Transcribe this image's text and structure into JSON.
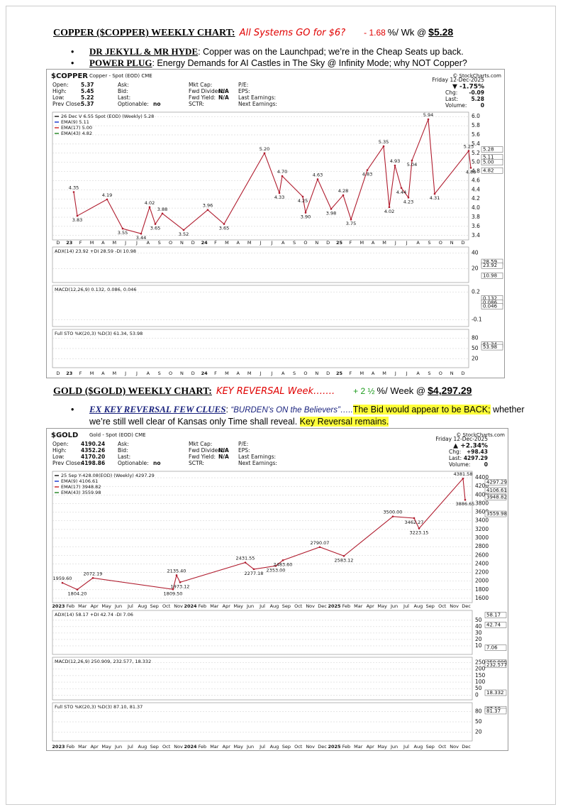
{
  "sections": [
    {
      "heading": {
        "title": "COPPER ($COPPER) WEEKLY CHART:",
        "tagline": "All Systems GO for $6?",
        "change": "- 1.68",
        "direction": "down",
        "unit": "%/ Wk @",
        "price": "$5.28"
      },
      "bullets": [
        [
          {
            "text": "DR JEKYLL & MR HYDE",
            "style": "lead"
          },
          {
            "text": ": Copper was on the Launchpad; we’re in the Cheap Seats up back.",
            "style": "plain"
          }
        ],
        [
          {
            "text": "POWER PLUG",
            "style": "lead"
          },
          {
            "text": ": Energy Demands for AI Castles in The Sky @ Infinity Mode; why NOT Copper?",
            "style": "plain"
          }
        ]
      ],
      "chart": {
        "symbol": "$COPPER",
        "name": "Copper - Spot (EOD) CME",
        "source": "© StockCharts.com",
        "quote": [
          [
            [
              "Open:",
              "5.37"
            ],
            [
              "High:",
              "5.45"
            ],
            [
              "Low:",
              "5.22"
            ],
            [
              "Prev Close:",
              "5.37"
            ]
          ],
          [
            [
              "Ask:"
            ],
            [
              "Bid:"
            ],
            [
              "Last:"
            ],
            [
              "Optionable:",
              "no"
            ]
          ],
          [
            [
              "Mkt Cap:"
            ],
            [
              "Fwd Dividend:",
              "N/A"
            ],
            [
              "Fwd Yield:",
              "N/A"
            ],
            [
              "SCTR:"
            ]
          ],
          [
            [
              "P/E:"
            ],
            [
              "EPS:"
            ],
            [
              "Last Earnings:"
            ],
            [
              "Next Earnings:"
            ]
          ]
        ],
        "date": "Friday 12-Dec-2025",
        "day_change": "▼ -1.75%",
        "direction": "down",
        "summary": [
          [
            "Chg:",
            "-0.09"
          ],
          [
            "Last:",
            "5.28"
          ],
          [
            "Volume:",
            "0"
          ]
        ],
        "price": {
          "legend": [
            {
              "text": "26 Dec V 6.55 Spot (EOD) (Weekly) 5.28",
              "color": "#222222"
            },
            {
              "text": "EMA(9) 5.11",
              "color": "#1f3fd0"
            },
            {
              "text": "EMA(17) 5.00",
              "color": "#d03030"
            },
            {
              "text": "EMA(43) 4.82",
              "color": "#2e8b2e"
            }
          ],
          "ylim": [
            3.35,
            6.05
          ],
          "yticks": [
            3.4,
            3.6,
            3.8,
            {
              "value": 4,
              "label": "4.0"
            },
            4.2,
            4.4,
            4.6,
            4.8,
            {
              "value": 5,
              "label": "5.0"
            },
            5.2,
            5.4,
            5.6,
            5.8,
            {
              "value": 6,
              "label": "6.0"
            }
          ],
          "annotations": {
            "values": [
              4.35,
              3.83,
              4.19,
              3.55,
              3.44,
              4.02,
              3.65,
              3.88,
              3.52,
              3.96,
              3.65,
              5.2,
              4.33,
              4.7,
              4.25,
              3.9,
              4.63,
              3.98,
              4.28,
              3.75,
              4.83,
              5.35,
              4.02,
              4.93,
              4.44,
              4.23,
              5.04,
              5.94,
              4.31,
              5.25,
              4.88
            ],
            "value_labels": [
              "4.35",
              "3.83",
              "4.19",
              "3.55",
              "3.44",
              "4.02",
              "3.65",
              "3.88",
              "3.52",
              "3.96",
              "3.65",
              "5.20",
              "4.33",
              "4.70",
              "4.25",
              "3.90",
              "4.63",
              "3.98",
              "4.28",
              "3.75",
              "4.83",
              "5.35",
              "4.02",
              "4.93",
              "4.44",
              "4.23",
              "5.04",
              "5.94",
              "4.31",
              "5.25",
              "4.88"
            ]
          },
          "right_labels": [
            {
              "value": 5.28,
              "label": "5.28"
            },
            {
              "value": 5.11,
              "label": "5.11"
            },
            {
              "value": 5,
              "label": "5.00"
            },
            {
              "value": 4.82,
              "label": "4.82"
            }
          ]
        },
        "months": [
          "D",
          "23",
          "F",
          "M",
          "A",
          "M",
          "J",
          "J",
          "A",
          "S",
          "O",
          "N",
          "D",
          "24",
          "F",
          "M",
          "A",
          "M",
          "J",
          "J",
          "A",
          "S",
          "O",
          "N",
          "D",
          "25",
          "F",
          "M",
          "A",
          "M",
          "J",
          "J",
          "A",
          "S",
          "O",
          "N",
          "D"
        ],
        "indicators": [
          {
            "legend": "ADX(14) 23.92 +DI 28.59 -DI 10.98",
            "ylim": [
              5,
              45
            ],
            "yticks": [
              40,
              20
            ],
            "right_labels": [
              {
                "value": 28.59,
                "label": "28.59"
              },
              {
                "value": 23.92,
                "label": "23.92"
              },
              {
                "value": 10.98,
                "label": "10.98"
              }
            ]
          },
          {
            "legend": "MACD(12,26,9) 0.132, 0.086, 0.046",
            "ylim": [
              -0.15,
              0.25
            ],
            "yticks": [
              0.2,
              -0.1
            ],
            "right_labels": [
              {
                "value": 0.132,
                "label": "0.132"
              },
              {
                "value": 0.086,
                "label": "0.086"
              },
              {
                "value": 0.046,
                "label": "0.046"
              }
            ]
          },
          {
            "legend": "Full STO %K(20,3) %D(3) 61.34, 53.98",
            "ylim": [
              0,
              100
            ],
            "yticks": [
              80,
              50,
              20
            ],
            "right_labels": [
              {
                "value": 61.34,
                "label": "61.34"
              },
              {
                "value": 53.98,
                "label": "53.98"
              }
            ]
          }
        ]
      }
    },
    {
      "heading": {
        "title": "GOLD ($GOLD) WEEKLY CHART:",
        "tagline": "KEY REVERSAL Week…….",
        "change": "+ 2 ½",
        "direction": "up",
        "unit": "%/ Week @",
        "price": "$4,297.29"
      },
      "bullets": [
        [
          {
            "text": "EX KEY REVERSAL FEW CLUES",
            "style": "lead-italic"
          },
          {
            "text": ": ",
            "style": "plain"
          },
          {
            "text": "“BURDEN’s ON the Believers”…..",
            "style": "quote"
          },
          {
            "text": "The Bid would appear to be BACK;",
            "style": "highlight"
          },
          {
            "text": " whether we’re still well clear of Kansas only Time shall reveal. ",
            "style": "plain"
          },
          {
            "text": "Key Reversal remains.",
            "style": "highlight"
          }
        ]
      ],
      "chart": {
        "symbol": "$GOLD",
        "name": "Gold - Spot (EOD) CME",
        "source": "© StockCharts.com",
        "quote": [
          [
            [
              "Open:",
              "4190.24"
            ],
            [
              "High:",
              "4352.26"
            ],
            [
              "Low:",
              "4170.20"
            ],
            [
              "Prev Close:",
              "4198.86"
            ]
          ],
          [
            [
              "Ask:"
            ],
            [
              "Bid:"
            ],
            [
              "Last:"
            ],
            [
              "Optionable:",
              "no"
            ]
          ],
          [
            [
              "Mkt Cap:"
            ],
            [
              "Fwd Dividend:",
              "N/A"
            ],
            [
              "Fwd Yield:",
              "N/A"
            ],
            [
              "SCTR:"
            ]
          ],
          [
            [
              "P/E:"
            ],
            [
              "EPS:"
            ],
            [
              "Last Earnings:"
            ],
            [
              "Next Earnings:"
            ]
          ]
        ],
        "date": "Friday 12-Dec-2025",
        "day_change": "▲ +2.34%",
        "direction": "up",
        "summary": [
          [
            "Chg:",
            "+98.43"
          ],
          [
            "Last:",
            "4297.29"
          ],
          [
            "Volume:",
            "0"
          ]
        ],
        "price": {
          "legend": [
            {
              "text": "25 Sep Y-428.08(EOD) (Weekly) 4297.29",
              "color": "#222222"
            },
            {
              "text": "EMA(9) 4106.61",
              "color": "#1f3fd0"
            },
            {
              "text": "EMA(17) 3948.82",
              "color": "#d03030"
            },
            {
              "text": "EMA(43) 3559.98",
              "color": "#2e8b2e"
            }
          ],
          "ylim": [
            1550,
            4500
          ],
          "yticks": [
            1600,
            1800,
            2000,
            2200,
            2400,
            2600,
            2800,
            3000,
            3200,
            3400,
            3600,
            3800,
            4000,
            4200,
            4400
          ],
          "annotations": {
            "values": [
              1959.6,
              1804.2,
              2072.19,
              1809.5,
              2135.4,
              1973.12,
              2431.55,
              2277.18,
              2353,
              2483.6,
              2790.07,
              2583.12,
              3500,
              3462.27,
              3223.15,
              4381.58,
              3886.65
            ],
            "value_labels": [
              "1959.60",
              "1804.20",
              "2072.19",
              "1809.50",
              "2135.40",
              "1973.12",
              "2431.55",
              "2277.18",
              "2353.00",
              "2483.60",
              "2790.07",
              "2583.12",
              "3500.00",
              "3462.27",
              "3223.15",
              "4381.58",
              "3886.65"
            ]
          },
          "right_labels": [
            {
              "value": 4297.29,
              "label": "4297.29"
            },
            {
              "value": 4106.61,
              "label": "4106.61"
            },
            {
              "value": 3948.82,
              "label": "3948.82"
            },
            {
              "value": 3559.98,
              "label": "3559.98"
            }
          ]
        },
        "months": [
          "2023",
          "Feb",
          "Mar",
          "Apr",
          "May",
          "Jun",
          "Jul",
          "Aug",
          "Sep",
          "Oct",
          "Nov",
          "2024",
          "Feb",
          "Mar",
          "Apr",
          "May",
          "Jun",
          "Jul",
          "Aug",
          "Sep",
          "Oct",
          "Nov",
          "Dec",
          "2025",
          "Feb",
          "Mar",
          "Apr",
          "May",
          "Jun",
          "Jul",
          "Aug",
          "Sep",
          "Oct",
          "Nov",
          "Dec"
        ],
        "indicators": [
          {
            "legend": "ADX(14) 58.17 +DI 42.74 -DI 7.06",
            "ylim": [
              0,
              62
            ],
            "yticks": [
              50,
              40,
              30,
              20,
              10
            ],
            "right_labels": [
              {
                "value": 58.17,
                "label": "58.17"
              },
              {
                "value": 42.74,
                "label": "42.74"
              },
              {
                "value": 7.06,
                "label": "7.06"
              }
            ]
          },
          {
            "legend": "MACD(12,26,9) 250.909, 232.577, 18.332",
            "ylim": [
              -20,
              275
            ],
            "yticks": [
              250,
              200,
              150,
              100,
              50,
              0
            ],
            "right_labels": [
              {
                "value": 250.909,
                "label": "250.909"
              },
              {
                "value": 232.577,
                "label": "232.577"
              },
              {
                "value": 18.332,
                "label": "18.332"
              }
            ]
          },
          {
            "legend": "Full STO %K(20,3) %D(3) 87.10, 81.37",
            "ylim": [
              0,
              100
            ],
            "yticks": [
              80,
              50,
              20
            ],
            "right_labels": [
              {
                "value": 87.1,
                "label": "87.10"
              },
              {
                "value": 81.37,
                "label": "81.37"
              }
            ]
          }
        ]
      }
    }
  ]
}
